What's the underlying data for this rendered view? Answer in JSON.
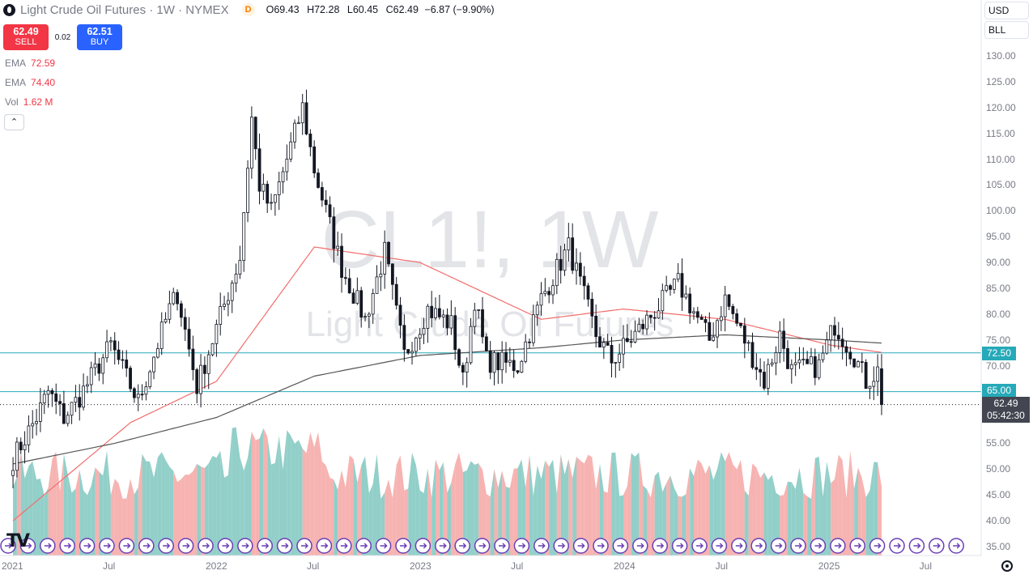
{
  "header": {
    "title": "Light Crude Oil Futures · 1W · NYMEX",
    "delay_badge": "D",
    "ohlc": {
      "o_label": "O",
      "o": "69.43",
      "h_label": "H",
      "h": "72.28",
      "l_label": "L",
      "l": "60.45",
      "c_label": "C",
      "c": "62.49",
      "change": "−6.87 (−9.90%)"
    }
  },
  "trade": {
    "sell_price": "62.49",
    "sell_label": "SELL",
    "spread": "0.02",
    "buy_price": "62.51",
    "buy_label": "BUY"
  },
  "indicators": [
    {
      "name": "EMA",
      "value": "72.59"
    },
    {
      "name": "EMA",
      "value": "74.40"
    },
    {
      "name": "Vol",
      "value": "1.62 M"
    }
  ],
  "collapse_glyph": "⌃",
  "top_right": {
    "currency": "USD",
    "unit": "BLL"
  },
  "watermark": {
    "symbol": "CL1!, 1W",
    "name": "Light Crude Oil Futures"
  },
  "colors": {
    "up": "#131722",
    "down": "#131722",
    "ema_fast": "#f26d6d",
    "ema_slow": "#555555",
    "hline": "#26a9b8",
    "vol_up": "#7fc7c0",
    "vol_down": "#f4a6a3"
  },
  "price_tags": [
    {
      "value": "72.50"
    },
    {
      "value": "65.00"
    }
  ],
  "last_price": {
    "value": "62.49",
    "countdown": "05:42:30"
  },
  "icon_names": {
    "logo": "oil-drop-icon",
    "tradingview": "tradingview-logo-icon",
    "settings": "gear-icon",
    "event": "forward-arrow-event-icon"
  },
  "chart_data": {
    "type": "candlestick",
    "interval": "1W",
    "y_axis": {
      "ticks": [
        35,
        40,
        45,
        50,
        55,
        60,
        65,
        70,
        75,
        80,
        85,
        90,
        95,
        100,
        105,
        110,
        115,
        120,
        125,
        130
      ],
      "tick_labels": [
        "35.00",
        "40.00",
        "45.00",
        "50.00",
        "55.00",
        "60.00",
        "65.00",
        "70.00",
        "75.00",
        "80.00",
        "85.00",
        "90.00",
        "95.00",
        "100.00",
        "105.00",
        "110.00",
        "115.00",
        "120.00",
        "125.00",
        "130.00"
      ],
      "range": [
        33,
        132
      ]
    },
    "x_axis": {
      "ticks": [
        "2021",
        "Jul",
        "2022",
        "Jul",
        "2023",
        "Jul",
        "2024",
        "Jul",
        "2025",
        "Jul"
      ]
    },
    "horizontal_lines": [
      72.5,
      65.0
    ],
    "last_close": 62.49,
    "anchors_close": [
      [
        "2021-01-04",
        52
      ],
      [
        "2021-02-15",
        60
      ],
      [
        "2021-03-08",
        65
      ],
      [
        "2021-04-05",
        60
      ],
      [
        "2021-05-03",
        64
      ],
      [
        "2021-06-28",
        74
      ],
      [
        "2021-08-16",
        63
      ],
      [
        "2021-10-11",
        81
      ],
      [
        "2021-10-25",
        84
      ],
      [
        "2021-11-29",
        66
      ],
      [
        "2021-12-27",
        75
      ],
      [
        "2022-02-14",
        91
      ],
      [
        "2022-03-07",
        118
      ],
      [
        "2022-03-21",
        105
      ],
      [
        "2022-04-11",
        100
      ],
      [
        "2022-06-06",
        120
      ],
      [
        "2022-06-27",
        108
      ],
      [
        "2022-08-15",
        89
      ],
      [
        "2022-09-26",
        79
      ],
      [
        "2022-10-31",
        92
      ],
      [
        "2022-12-05",
        72
      ],
      [
        "2023-01-16",
        81
      ],
      [
        "2023-02-27",
        78
      ],
      [
        "2023-03-20",
        67
      ],
      [
        "2023-04-10",
        83
      ],
      [
        "2023-05-01",
        71
      ],
      [
        "2023-06-26",
        70
      ],
      [
        "2023-08-07",
        83
      ],
      [
        "2023-09-25",
        93
      ],
      [
        "2023-11-13",
        76
      ],
      [
        "2023-12-11",
        71
      ],
      [
        "2024-01-29",
        77
      ],
      [
        "2024-04-08",
        86
      ],
      [
        "2024-06-03",
        75
      ],
      [
        "2024-07-01",
        83
      ],
      [
        "2024-09-09",
        67
      ],
      [
        "2024-10-07",
        76
      ],
      [
        "2024-10-28",
        69
      ],
      [
        "2024-12-16",
        70
      ],
      [
        "2025-01-13",
        78
      ],
      [
        "2025-02-17",
        72
      ],
      [
        "2025-03-10",
        67
      ],
      [
        "2025-03-31",
        69
      ],
      [
        "2025-04-07",
        62.49
      ]
    ],
    "ema_fast_anchors": [
      [
        "2021-01-04",
        40
      ],
      [
        "2021-08-02",
        59
      ],
      [
        "2022-01-03",
        67
      ],
      [
        "2022-06-27",
        93
      ],
      [
        "2023-01-02",
        90
      ],
      [
        "2023-08-07",
        79
      ],
      [
        "2024-01-01",
        81
      ],
      [
        "2024-07-01",
        79
      ],
      [
        "2025-01-06",
        74
      ],
      [
        "2025-04-07",
        72.59
      ]
    ],
    "ema_slow_anchors": [
      [
        "2021-01-04",
        51
      ],
      [
        "2021-07-05",
        55
      ],
      [
        "2022-01-03",
        60
      ],
      [
        "2022-06-27",
        68
      ],
      [
        "2023-01-02",
        72
      ],
      [
        "2023-08-07",
        73.5
      ],
      [
        "2024-01-01",
        75
      ],
      [
        "2024-07-01",
        76
      ],
      [
        "2025-01-06",
        75
      ],
      [
        "2025-04-07",
        74.4
      ]
    ],
    "volume": {
      "last": "1.62 M"
    }
  }
}
